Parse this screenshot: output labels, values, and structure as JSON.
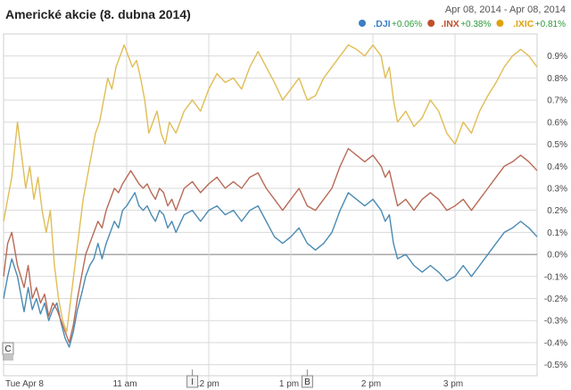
{
  "chart_data": {
    "type": "line",
    "title": "Americké akcie (8. dubna 2014)",
    "date_range": "Apr 08, 2014 - Apr 08, 2014",
    "x_ticks": [
      "Tue Apr 8",
      "11 am",
      "12 pm",
      "1 pm",
      "2 pm",
      "3 pm"
    ],
    "y_ticks": [
      "0.9%",
      "0.8%",
      "0.7%",
      "0.6%",
      "0.5%",
      "0.4%",
      "0.3%",
      "0.2%",
      "0.1%",
      "0.0%",
      "-0.1%",
      "-0.2%",
      "-0.3%",
      "-0.4%",
      "-0.5%"
    ],
    "ylim": [
      -0.55,
      1.0
    ],
    "grid": true,
    "legend_position": "top-right",
    "x_hours": [
      9.5,
      16.0
    ],
    "markers": [
      {
        "label": "C",
        "x": 9.5
      },
      {
        "label": "I",
        "x": 11.8
      },
      {
        "label": "B",
        "x": 13.2
      }
    ],
    "series": [
      {
        "name": ".DJI",
        "change": "+0.06%",
        "color": "#3b7fc4",
        "line_color": "#4a8ab3",
        "points": [
          [
            9.5,
            -0.2
          ],
          [
            9.55,
            -0.1
          ],
          [
            9.6,
            -0.02
          ],
          [
            9.67,
            -0.1
          ],
          [
            9.75,
            -0.26
          ],
          [
            9.8,
            -0.15
          ],
          [
            9.85,
            -0.25
          ],
          [
            9.9,
            -0.2
          ],
          [
            9.95,
            -0.27
          ],
          [
            10.0,
            -0.22
          ],
          [
            10.05,
            -0.3
          ],
          [
            10.1,
            -0.25
          ],
          [
            10.15,
            -0.22
          ],
          [
            10.2,
            -0.31
          ],
          [
            10.25,
            -0.38
          ],
          [
            10.3,
            -0.42
          ],
          [
            10.35,
            -0.35
          ],
          [
            10.4,
            -0.25
          ],
          [
            10.45,
            -0.18
          ],
          [
            10.5,
            -0.1
          ],
          [
            10.55,
            -0.05
          ],
          [
            10.6,
            -0.02
          ],
          [
            10.65,
            0.05
          ],
          [
            10.7,
            -0.02
          ],
          [
            10.75,
            0.05
          ],
          [
            10.8,
            0.1
          ],
          [
            10.85,
            0.15
          ],
          [
            10.9,
            0.12
          ],
          [
            10.95,
            0.2
          ],
          [
            11.0,
            0.22
          ],
          [
            11.05,
            0.25
          ],
          [
            11.1,
            0.28
          ],
          [
            11.15,
            0.22
          ],
          [
            11.2,
            0.2
          ],
          [
            11.25,
            0.22
          ],
          [
            11.3,
            0.18
          ],
          [
            11.35,
            0.15
          ],
          [
            11.4,
            0.2
          ],
          [
            11.45,
            0.18
          ],
          [
            11.5,
            0.12
          ],
          [
            11.55,
            0.15
          ],
          [
            11.6,
            0.1
          ],
          [
            11.7,
            0.18
          ],
          [
            11.8,
            0.2
          ],
          [
            11.9,
            0.15
          ],
          [
            12.0,
            0.2
          ],
          [
            12.1,
            0.22
          ],
          [
            12.2,
            0.18
          ],
          [
            12.3,
            0.2
          ],
          [
            12.4,
            0.15
          ],
          [
            12.5,
            0.2
          ],
          [
            12.6,
            0.22
          ],
          [
            12.7,
            0.15
          ],
          [
            12.8,
            0.08
          ],
          [
            12.9,
            0.05
          ],
          [
            13.0,
            0.08
          ],
          [
            13.1,
            0.12
          ],
          [
            13.2,
            0.05
          ],
          [
            13.3,
            0.02
          ],
          [
            13.4,
            0.05
          ],
          [
            13.5,
            0.1
          ],
          [
            13.6,
            0.2
          ],
          [
            13.7,
            0.28
          ],
          [
            13.8,
            0.25
          ],
          [
            13.9,
            0.22
          ],
          [
            14.0,
            0.25
          ],
          [
            14.1,
            0.2
          ],
          [
            14.15,
            0.15
          ],
          [
            14.2,
            0.18
          ],
          [
            14.25,
            0.05
          ],
          [
            14.3,
            -0.02
          ],
          [
            14.4,
            0.0
          ],
          [
            14.5,
            -0.05
          ],
          [
            14.6,
            -0.08
          ],
          [
            14.7,
            -0.05
          ],
          [
            14.8,
            -0.08
          ],
          [
            14.9,
            -0.12
          ],
          [
            15.0,
            -0.1
          ],
          [
            15.1,
            -0.05
          ],
          [
            15.2,
            -0.1
          ],
          [
            15.3,
            -0.05
          ],
          [
            15.4,
            0.0
          ],
          [
            15.5,
            0.05
          ],
          [
            15.6,
            0.1
          ],
          [
            15.7,
            0.12
          ],
          [
            15.8,
            0.15
          ],
          [
            15.9,
            0.12
          ],
          [
            16.0,
            0.08
          ]
        ]
      },
      {
        "name": ".INX",
        "change": "+0.38%",
        "color": "#c0502c",
        "line_color": "#b86a56",
        "points": [
          [
            9.5,
            -0.1
          ],
          [
            9.55,
            0.05
          ],
          [
            9.6,
            0.1
          ],
          [
            9.67,
            -0.05
          ],
          [
            9.75,
            -0.15
          ],
          [
            9.8,
            -0.05
          ],
          [
            9.85,
            -0.2
          ],
          [
            9.9,
            -0.15
          ],
          [
            9.95,
            -0.22
          ],
          [
            10.0,
            -0.18
          ],
          [
            10.05,
            -0.28
          ],
          [
            10.1,
            -0.22
          ],
          [
            10.15,
            -0.25
          ],
          [
            10.2,
            -0.3
          ],
          [
            10.25,
            -0.35
          ],
          [
            10.3,
            -0.4
          ],
          [
            10.35,
            -0.32
          ],
          [
            10.4,
            -0.2
          ],
          [
            10.45,
            -0.1
          ],
          [
            10.5,
            0.0
          ],
          [
            10.55,
            0.05
          ],
          [
            10.6,
            0.1
          ],
          [
            10.65,
            0.15
          ],
          [
            10.7,
            0.12
          ],
          [
            10.75,
            0.2
          ],
          [
            10.8,
            0.25
          ],
          [
            10.85,
            0.3
          ],
          [
            10.9,
            0.28
          ],
          [
            10.95,
            0.32
          ],
          [
            11.0,
            0.35
          ],
          [
            11.05,
            0.38
          ],
          [
            11.1,
            0.35
          ],
          [
            11.15,
            0.32
          ],
          [
            11.2,
            0.3
          ],
          [
            11.25,
            0.32
          ],
          [
            11.3,
            0.28
          ],
          [
            11.35,
            0.25
          ],
          [
            11.4,
            0.3
          ],
          [
            11.45,
            0.28
          ],
          [
            11.5,
            0.22
          ],
          [
            11.55,
            0.25
          ],
          [
            11.6,
            0.2
          ],
          [
            11.7,
            0.3
          ],
          [
            11.8,
            0.33
          ],
          [
            11.9,
            0.28
          ],
          [
            12.0,
            0.32
          ],
          [
            12.1,
            0.35
          ],
          [
            12.2,
            0.3
          ],
          [
            12.3,
            0.33
          ],
          [
            12.4,
            0.3
          ],
          [
            12.5,
            0.35
          ],
          [
            12.6,
            0.37
          ],
          [
            12.7,
            0.3
          ],
          [
            12.8,
            0.25
          ],
          [
            12.9,
            0.2
          ],
          [
            13.0,
            0.25
          ],
          [
            13.1,
            0.3
          ],
          [
            13.2,
            0.22
          ],
          [
            13.3,
            0.2
          ],
          [
            13.4,
            0.25
          ],
          [
            13.5,
            0.3
          ],
          [
            13.6,
            0.4
          ],
          [
            13.7,
            0.48
          ],
          [
            13.8,
            0.45
          ],
          [
            13.9,
            0.42
          ],
          [
            14.0,
            0.45
          ],
          [
            14.1,
            0.4
          ],
          [
            14.15,
            0.35
          ],
          [
            14.2,
            0.38
          ],
          [
            14.25,
            0.3
          ],
          [
            14.3,
            0.22
          ],
          [
            14.4,
            0.25
          ],
          [
            14.5,
            0.2
          ],
          [
            14.6,
            0.25
          ],
          [
            14.7,
            0.28
          ],
          [
            14.8,
            0.25
          ],
          [
            14.9,
            0.2
          ],
          [
            15.0,
            0.22
          ],
          [
            15.1,
            0.25
          ],
          [
            15.2,
            0.2
          ],
          [
            15.3,
            0.25
          ],
          [
            15.4,
            0.3
          ],
          [
            15.5,
            0.35
          ],
          [
            15.6,
            0.4
          ],
          [
            15.7,
            0.42
          ],
          [
            15.8,
            0.45
          ],
          [
            15.9,
            0.42
          ],
          [
            16.0,
            0.38
          ]
        ]
      },
      {
        "name": ".IXIC",
        "change": "+0.81%",
        "color": "#e0a10f",
        "line_color": "#e0bd55",
        "points": [
          [
            9.5,
            0.15
          ],
          [
            9.55,
            0.25
          ],
          [
            9.6,
            0.35
          ],
          [
            9.67,
            0.6
          ],
          [
            9.72,
            0.45
          ],
          [
            9.77,
            0.3
          ],
          [
            9.82,
            0.4
          ],
          [
            9.87,
            0.25
          ],
          [
            9.92,
            0.35
          ],
          [
            9.97,
            0.2
          ],
          [
            10.02,
            0.1
          ],
          [
            10.07,
            0.2
          ],
          [
            10.12,
            -0.05
          ],
          [
            10.17,
            -0.2
          ],
          [
            10.22,
            -0.3
          ],
          [
            10.27,
            -0.35
          ],
          [
            10.32,
            -0.2
          ],
          [
            10.37,
            -0.05
          ],
          [
            10.42,
            0.1
          ],
          [
            10.47,
            0.25
          ],
          [
            10.52,
            0.35
          ],
          [
            10.57,
            0.45
          ],
          [
            10.62,
            0.55
          ],
          [
            10.67,
            0.6
          ],
          [
            10.72,
            0.7
          ],
          [
            10.77,
            0.8
          ],
          [
            10.82,
            0.75
          ],
          [
            10.87,
            0.85
          ],
          [
            10.92,
            0.9
          ],
          [
            10.97,
            0.95
          ],
          [
            11.02,
            0.9
          ],
          [
            11.07,
            0.85
          ],
          [
            11.12,
            0.88
          ],
          [
            11.17,
            0.8
          ],
          [
            11.22,
            0.7
          ],
          [
            11.27,
            0.55
          ],
          [
            11.32,
            0.6
          ],
          [
            11.37,
            0.65
          ],
          [
            11.42,
            0.55
          ],
          [
            11.47,
            0.5
          ],
          [
            11.52,
            0.6
          ],
          [
            11.6,
            0.55
          ],
          [
            11.7,
            0.65
          ],
          [
            11.8,
            0.7
          ],
          [
            11.9,
            0.65
          ],
          [
            12.0,
            0.75
          ],
          [
            12.1,
            0.82
          ],
          [
            12.2,
            0.78
          ],
          [
            12.3,
            0.8
          ],
          [
            12.4,
            0.75
          ],
          [
            12.5,
            0.85
          ],
          [
            12.6,
            0.92
          ],
          [
            12.7,
            0.85
          ],
          [
            12.8,
            0.78
          ],
          [
            12.9,
            0.7
          ],
          [
            13.0,
            0.75
          ],
          [
            13.1,
            0.8
          ],
          [
            13.2,
            0.7
          ],
          [
            13.3,
            0.72
          ],
          [
            13.4,
            0.8
          ],
          [
            13.5,
            0.85
          ],
          [
            13.6,
            0.9
          ],
          [
            13.7,
            0.95
          ],
          [
            13.8,
            0.93
          ],
          [
            13.9,
            0.9
          ],
          [
            14.0,
            0.95
          ],
          [
            14.1,
            0.9
          ],
          [
            14.15,
            0.8
          ],
          [
            14.2,
            0.85
          ],
          [
            14.25,
            0.7
          ],
          [
            14.3,
            0.6
          ],
          [
            14.4,
            0.65
          ],
          [
            14.5,
            0.58
          ],
          [
            14.6,
            0.62
          ],
          [
            14.7,
            0.7
          ],
          [
            14.8,
            0.65
          ],
          [
            14.9,
            0.55
          ],
          [
            15.0,
            0.5
          ],
          [
            15.1,
            0.6
          ],
          [
            15.2,
            0.55
          ],
          [
            15.3,
            0.65
          ],
          [
            15.4,
            0.72
          ],
          [
            15.5,
            0.78
          ],
          [
            15.6,
            0.85
          ],
          [
            15.7,
            0.9
          ],
          [
            15.8,
            0.93
          ],
          [
            15.9,
            0.9
          ],
          [
            16.0,
            0.85
          ]
        ]
      }
    ]
  }
}
